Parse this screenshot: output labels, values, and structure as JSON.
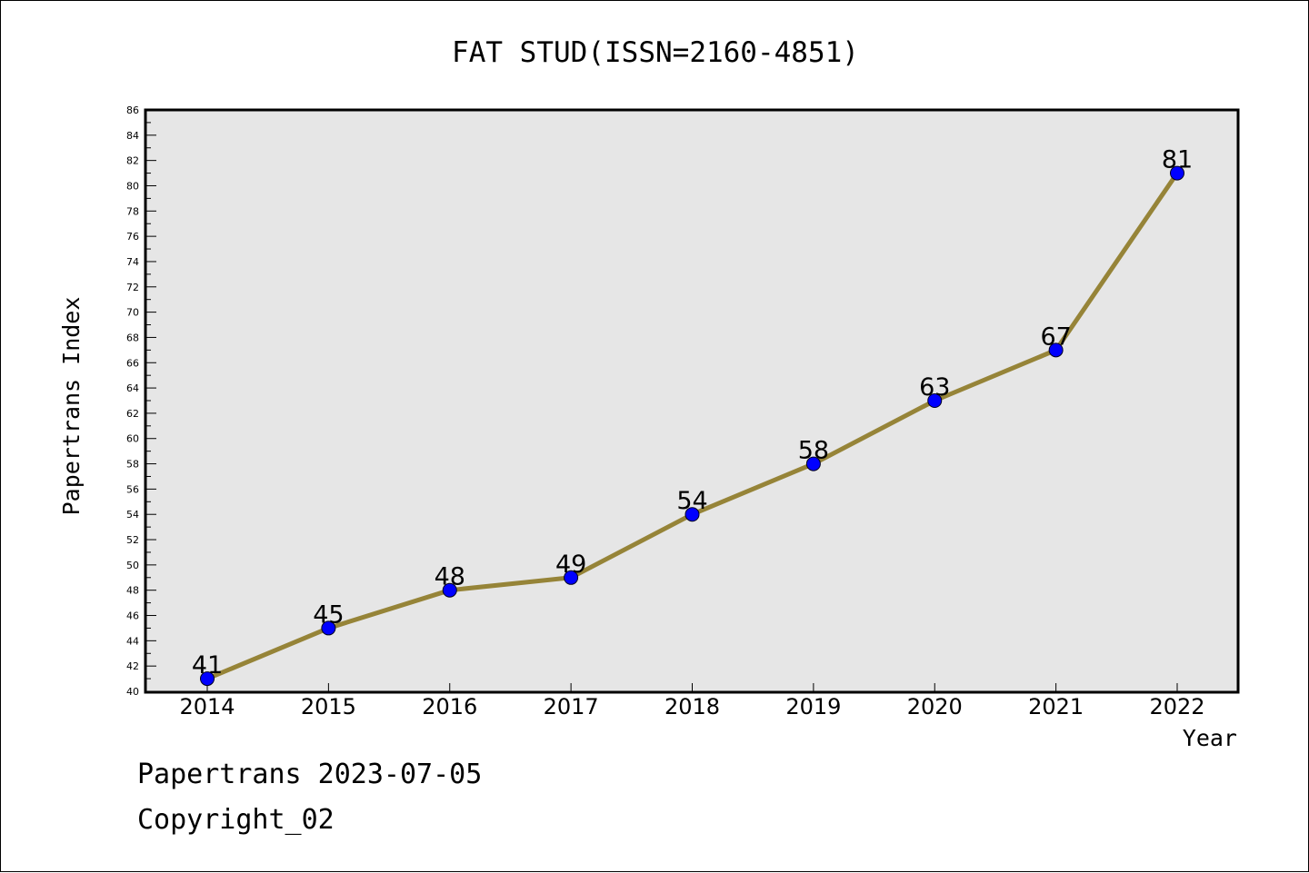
{
  "chart_data": {
    "type": "line",
    "title": "FAT STUD(ISSN=2160-4851)",
    "xlabel": "Year",
    "ylabel": "Papertrans Index",
    "categories": [
      "2014",
      "2015",
      "2016",
      "2017",
      "2018",
      "2019",
      "2020",
      "2021",
      "2022"
    ],
    "series": [
      {
        "values": [
          41,
          45,
          48,
          49,
          54,
          58,
          63,
          67,
          81
        ]
      }
    ],
    "ylim": [
      40,
      86
    ],
    "ytick_step": 2,
    "grid": false,
    "data_labels": true,
    "plot_background": "#e6e6e6",
    "line_color": "#968438",
    "marker_color": "#0000ff"
  },
  "footer": {
    "line1": "Papertrans 2023-07-05",
    "line2": "Copyright_02"
  }
}
